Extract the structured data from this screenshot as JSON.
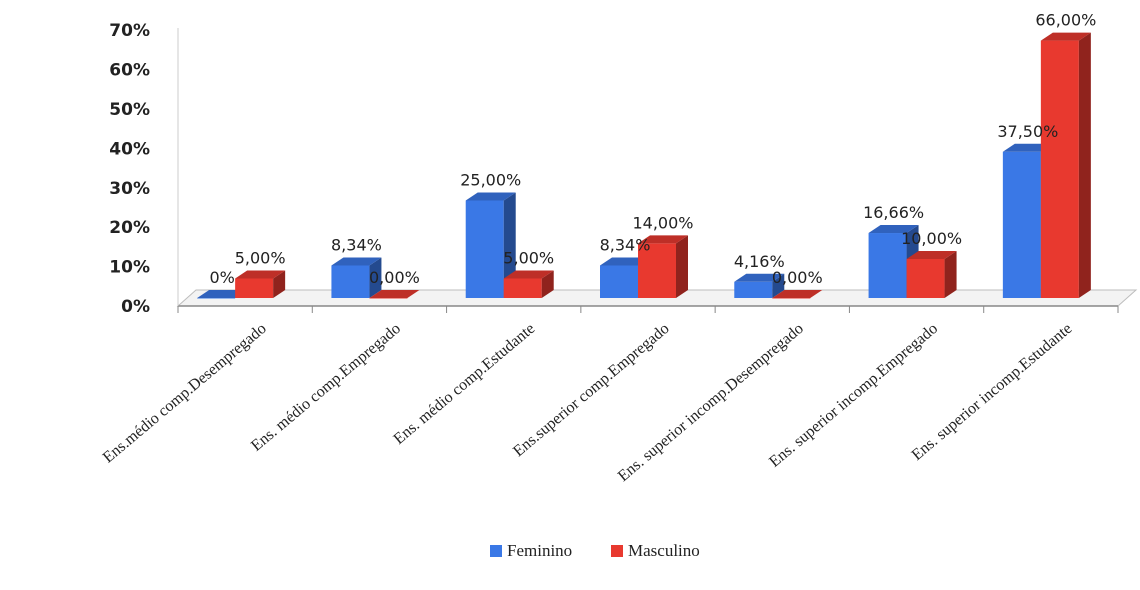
{
  "chart_data": {
    "type": "bar",
    "style": "3d-clustered-column",
    "categories": [
      "Ens.médio comp.Desempregado",
      "Ens. médio comp.Empregado",
      "Ens. médio comp.Estudante",
      "Ens.superior comp.Empregado",
      "Ens. superior incomp.Desempregado",
      "Ens. superior incomp.Empregado",
      "Ens. superior incomp.Estudante"
    ],
    "series": [
      {
        "name": "Feminino",
        "color": "#3a78e6",
        "values": [
          0,
          8.34,
          25.0,
          8.34,
          4.16,
          16.66,
          37.5
        ],
        "labels": [
          "0%",
          "8,34%",
          "25,00%",
          "8,34%",
          "4,16%",
          "16,66%",
          "37,50%"
        ]
      },
      {
        "name": "Masculino",
        "color": "#e8392f",
        "values": [
          5.0,
          0.0,
          5.0,
          14.0,
          0.0,
          10.0,
          66.0
        ],
        "labels": [
          "5,00%",
          "0,00%",
          "5,00%",
          "14,00%",
          "0,00%",
          "10,00%",
          "66,00%"
        ]
      }
    ],
    "y_ticks": [
      "0%",
      "10%",
      "20%",
      "30%",
      "40%",
      "50%",
      "60%",
      "70%"
    ],
    "ylim": [
      0,
      70
    ],
    "legend": "bottom",
    "grid": false
  }
}
